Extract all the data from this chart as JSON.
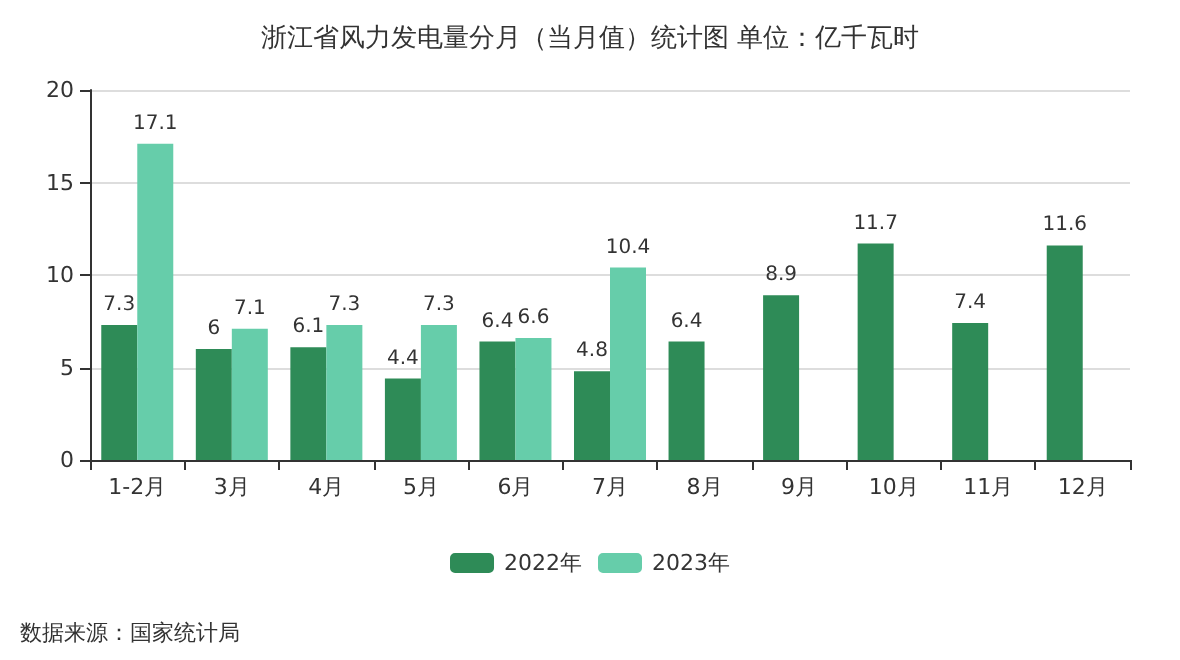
{
  "chart_data": {
    "type": "bar",
    "title": "浙江省风力发电量分月（当月值）统计图 单位：亿千瓦时",
    "categories": [
      "1-2月",
      "3月",
      "4月",
      "5月",
      "6月",
      "7月",
      "8月",
      "9月",
      "10月",
      "11月",
      "12月"
    ],
    "series": [
      {
        "name": "2022年",
        "color": "#2e8b57",
        "values": [
          7.3,
          6,
          6.1,
          4.4,
          6.4,
          4.8,
          6.4,
          8.9,
          11.7,
          7.4,
          11.6
        ]
      },
      {
        "name": "2023年",
        "color": "#66cdaa",
        "values": [
          17.1,
          7.1,
          7.3,
          7.3,
          6.6,
          10.4,
          null,
          null,
          null,
          null,
          null
        ]
      }
    ],
    "ylim": [
      0,
      20
    ],
    "yticks": [
      0,
      5,
      10,
      15,
      20
    ],
    "grid": "y",
    "legend": "bottom",
    "data_labels": true,
    "annotations": [
      "数据来源：国家统计局"
    ]
  }
}
